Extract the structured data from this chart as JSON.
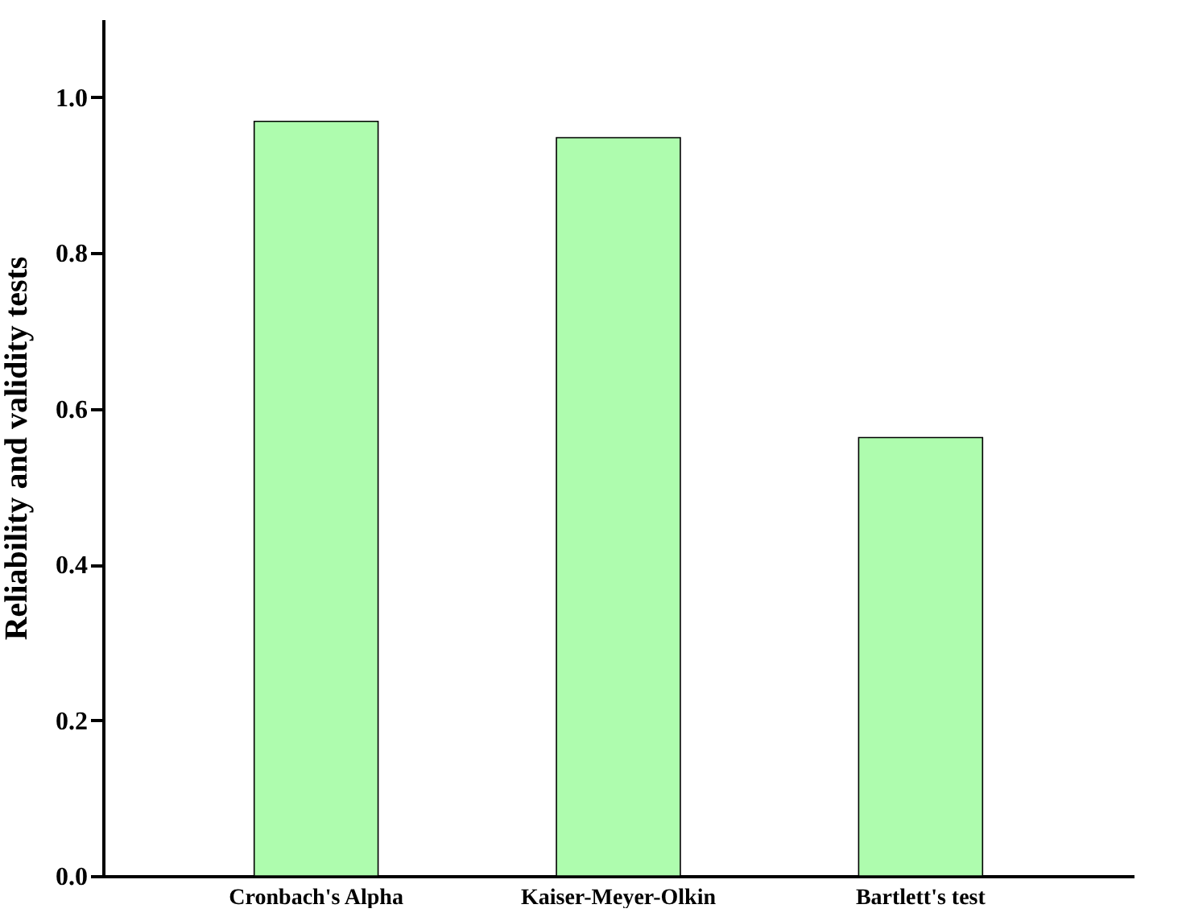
{
  "chart_data": {
    "type": "bar",
    "ylabel": "Reliability and validity tests",
    "categories": [
      "Cronbach's Alpha",
      "Kaiser-Meyer-Olkin",
      "Bartlett's test"
    ],
    "values": [
      0.969,
      0.948,
      0.563
    ],
    "color": "#aefcae",
    "ylim": [
      0,
      1.1
    ],
    "yticks": [
      {
        "value": 0,
        "label": "0.0"
      },
      {
        "value": 0.2,
        "label": "0.2"
      },
      {
        "value": 0.4,
        "label": "0.4"
      },
      {
        "value": 0.6,
        "label": "0.6"
      },
      {
        "value": 0.8,
        "label": "0.8"
      },
      {
        "value": 1,
        "label": "1.0"
      }
    ],
    "grid": false
  }
}
